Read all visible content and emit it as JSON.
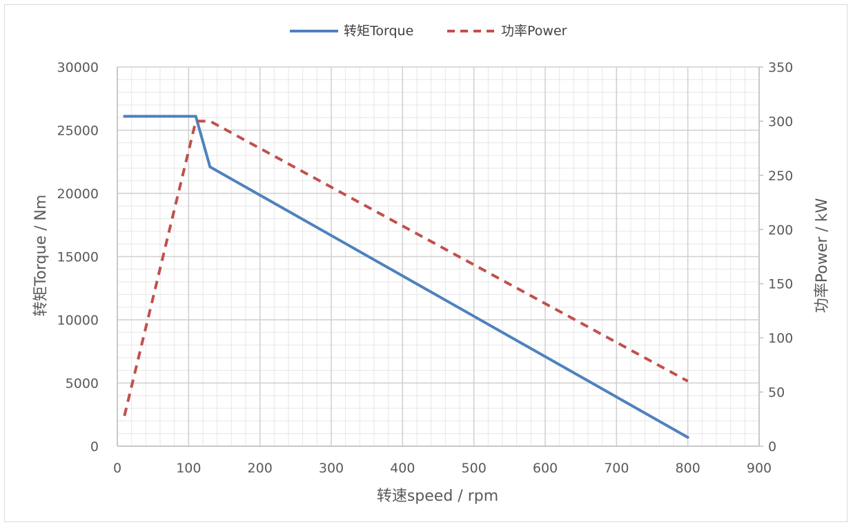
{
  "chart_data": {
    "type": "line",
    "xlabel": "转速speed / rpm",
    "ylabel": "转矩Torque / Nm",
    "y2label": "功率Power / kW",
    "xlim": [
      0,
      900
    ],
    "ylim": [
      0,
      30000
    ],
    "y2lim": [
      0,
      350
    ],
    "xticks": [
      0,
      100,
      200,
      300,
      400,
      500,
      600,
      700,
      800,
      900
    ],
    "yticks": [
      0,
      5000,
      10000,
      15000,
      20000,
      25000,
      30000
    ],
    "y2ticks": [
      0,
      50,
      100,
      150,
      200,
      250,
      300,
      350
    ],
    "grid": true,
    "legend_position": "top-center",
    "series": [
      {
        "name": "转矩Torque",
        "axis": "left",
        "color": "#4f81bd",
        "style": "solid",
        "x": [
          10,
          110,
          130,
          800
        ],
        "y": [
          26100,
          26100,
          22100,
          700
        ]
      },
      {
        "name": "功率Power",
        "axis": "right",
        "color": "#c0504d",
        "style": "dashed",
        "x": [
          10,
          110,
          130,
          800
        ],
        "y": [
          28,
          300,
          300,
          60
        ]
      }
    ]
  }
}
